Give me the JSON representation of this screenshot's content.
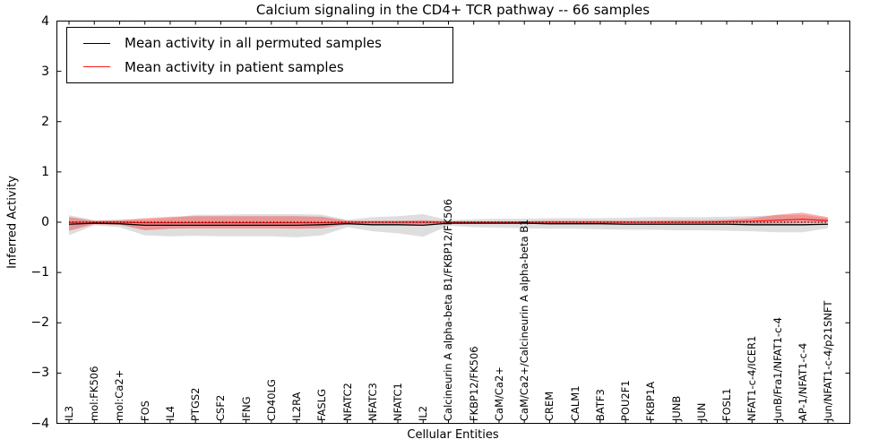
{
  "chart_data": {
    "type": "line",
    "title": "Calcium signaling in the CD4+ TCR pathway -- 66 samples",
    "xlabel": "Cellular Entities",
    "ylabel": "Inferred Activity",
    "ylim": [
      -4,
      4
    ],
    "yticks": [
      4,
      3,
      2,
      1,
      0,
      -1,
      -2,
      -3,
      -4
    ],
    "ytick_labels": [
      "4",
      "3",
      "2",
      "1",
      "0",
      "−1",
      "−2",
      "−3",
      "−4"
    ],
    "grid": false,
    "legend_position": "upper-left",
    "background": "#ffffff",
    "categories": [
      "IL3",
      "mol:FK506",
      "mol:Ca2+",
      "FOS",
      "IL4",
      "PTGS2",
      "CSF2",
      "IFNG",
      "CD40LG",
      "IL2RA",
      "FASLG",
      "NFATC2",
      "NFATC3",
      "NFATC1",
      "IL2",
      "Calcineurin A alpha-beta B1/FKBP12/FK506",
      "FKBP12/FK506",
      "CaM/Ca2+",
      "CaM/Ca2+/Calcineurin A alpha-beta B1",
      "CREM",
      "CALM1",
      "BATF3",
      "POU2F1",
      "FKBP1A",
      "JUNB",
      "JUN",
      "FOSL1",
      "NFAT1-c-4/ICER1",
      "JunB/Fra1/NFAT1-c-4",
      "AP-1/NFAT1-c-4",
      "Jun/NFAT1-c-4/p21SNFT"
    ],
    "series": [
      {
        "name": "Mean activity in all permuted samples",
        "color": "#000000",
        "band_color": "rgba(0,0,0,0.13)",
        "values": [
          -0.04,
          -0.02,
          -0.03,
          -0.06,
          -0.06,
          -0.06,
          -0.06,
          -0.06,
          -0.06,
          -0.06,
          -0.05,
          -0.03,
          -0.05,
          -0.05,
          -0.06,
          -0.02,
          -0.02,
          -0.02,
          -0.02,
          -0.03,
          -0.03,
          -0.03,
          -0.04,
          -0.04,
          -0.04,
          -0.04,
          -0.04,
          -0.05,
          -0.05,
          -0.05,
          -0.04
        ],
        "band_lower": [
          -0.26,
          -0.06,
          -0.1,
          -0.26,
          -0.28,
          -0.27,
          -0.28,
          -0.28,
          -0.28,
          -0.3,
          -0.26,
          -0.1,
          -0.18,
          -0.22,
          -0.29,
          -0.07,
          -0.1,
          -0.11,
          -0.12,
          -0.13,
          -0.13,
          -0.14,
          -0.15,
          -0.15,
          -0.16,
          -0.16,
          -0.17,
          -0.18,
          -0.2,
          -0.2,
          -0.12
        ],
        "band_upper": [
          0.14,
          0.04,
          0.05,
          0.05,
          0.08,
          0.15,
          0.15,
          0.16,
          0.16,
          0.16,
          0.15,
          0.05,
          0.1,
          0.12,
          0.16,
          0.04,
          0.06,
          0.07,
          0.07,
          0.08,
          0.08,
          0.08,
          0.09,
          0.1,
          0.1,
          0.1,
          0.11,
          0.12,
          0.14,
          0.15,
          0.08
        ]
      },
      {
        "name": "Mean activity in patient samples",
        "color": "#ff1a1a",
        "band_color": "rgba(255,0,0,0.32)",
        "values": [
          0.0,
          0.0,
          0.0,
          -0.01,
          -0.01,
          -0.01,
          -0.01,
          -0.01,
          -0.01,
          -0.01,
          -0.01,
          0.0,
          0.0,
          0.0,
          0.0,
          0.0,
          0.0,
          0.0,
          0.0,
          0.0,
          0.0,
          0.0,
          0.0,
          0.0,
          0.0,
          0.0,
          0.01,
          0.02,
          0.04,
          0.06,
          0.03
        ],
        "band_lower": [
          -0.17,
          -0.04,
          -0.05,
          -0.16,
          -0.13,
          -0.12,
          -0.12,
          -0.12,
          -0.12,
          -0.13,
          -0.12,
          -0.04,
          -0.04,
          -0.04,
          -0.05,
          -0.03,
          -0.03,
          -0.03,
          -0.03,
          -0.04,
          -0.04,
          -0.04,
          -0.04,
          -0.05,
          -0.05,
          -0.05,
          -0.05,
          -0.04,
          -0.03,
          -0.02,
          -0.01
        ],
        "band_upper": [
          0.1,
          0.03,
          0.04,
          0.08,
          0.11,
          0.12,
          0.12,
          0.12,
          0.12,
          0.12,
          0.11,
          0.03,
          0.03,
          0.03,
          0.04,
          0.02,
          0.02,
          0.02,
          0.02,
          0.03,
          0.03,
          0.03,
          0.03,
          0.03,
          0.04,
          0.04,
          0.05,
          0.08,
          0.15,
          0.19,
          0.1
        ]
      }
    ],
    "reference_line": {
      "y": 0,
      "color": "#000000",
      "style": "dotted"
    }
  }
}
